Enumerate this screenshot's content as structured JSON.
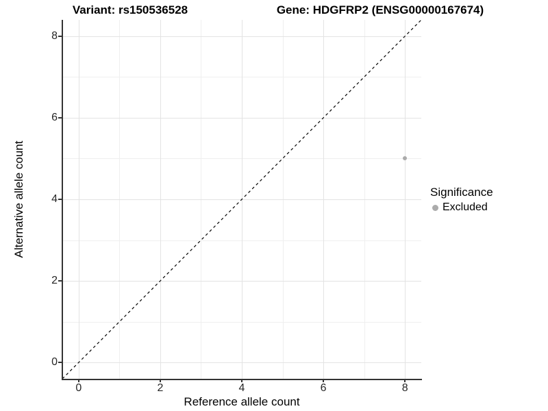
{
  "header": {
    "variant_title": "Variant: rs150536528",
    "gene_title": "Gene: HDGFRP2 (ENSG00000167674)"
  },
  "legend": {
    "title": "Significance",
    "items": [
      {
        "label": "Excluded",
        "color": "#ABABAB"
      }
    ]
  },
  "colors": {
    "point": "#ABABAB",
    "grid_major": "#E3E3E3",
    "grid_minor": "#EFEFEF",
    "axis": "#333333",
    "dashed_line": "#000000"
  },
  "chart_data": {
    "type": "scatter",
    "title": "Variant: rs150536528 | Gene: HDGFRP2 (ENSG00000167674)",
    "xlabel": "Reference allele count",
    "ylabel": "Alternative allele count",
    "xlim": [
      -0.4,
      8.4
    ],
    "ylim": [
      -0.4,
      8.4
    ],
    "x_ticks": [
      0,
      2,
      4,
      6,
      8
    ],
    "y_ticks": [
      0,
      2,
      4,
      6,
      8
    ],
    "x_minor_ticks": [
      1,
      3,
      5,
      7
    ],
    "y_minor_ticks": [
      1,
      3,
      5,
      7
    ],
    "grid": true,
    "legend_position": "right",
    "series": [
      {
        "name": "Excluded",
        "color": "#ABABAB",
        "points": [
          {
            "x": 8,
            "y": 5
          }
        ]
      }
    ],
    "reference_line": {
      "kind": "identity",
      "style": "dashed",
      "from": [
        -0.4,
        -0.4
      ],
      "to": [
        8.4,
        8.4
      ]
    }
  }
}
